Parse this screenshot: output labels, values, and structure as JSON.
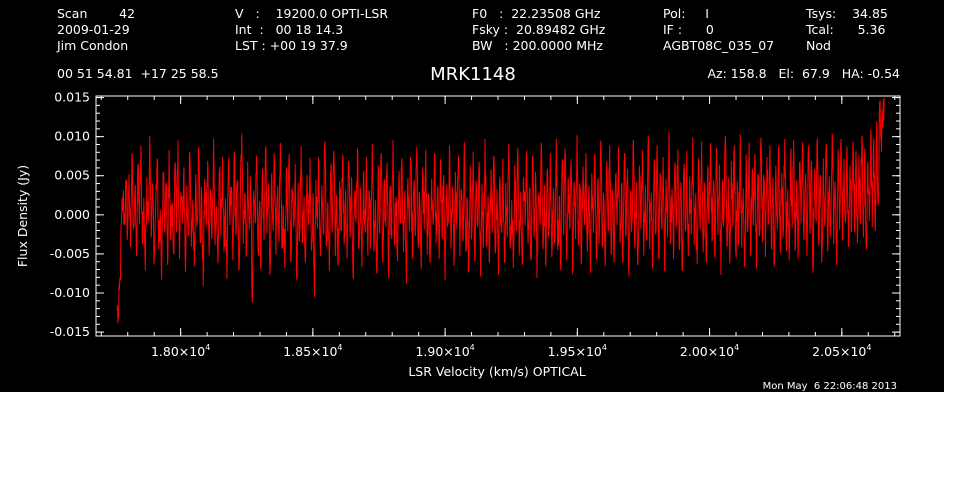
{
  "header": {
    "col1": [
      "Scan        42",
      "2009-01-29",
      "Jim Condon"
    ],
    "col2": [
      "V   :    19200.0 OPTI-LSR",
      "Int  :   00 18 14.3",
      "LST : +00 19 37.9"
    ],
    "col3": [
      "F0   :  22.23508 GHz",
      "Fsky :  20.89482 GHz",
      "BW   : 200.0000 MHz"
    ],
    "col4": [
      "Pol:     I",
      "IF :      0",
      "AGBT08C_035_07"
    ],
    "col5": [
      "Tsys:    34.85",
      "Tcal:      5.36",
      "Nod"
    ],
    "coords": "00 51 54.81  +17 25 58.5",
    "source": "MRK1148",
    "pointing": "Az: 158.8   El:  67.9   HA: -0.54",
    "timestamp": "Mon May  6 22:06:48 2013"
  },
  "colors": {
    "background": "#000000",
    "foreground": "#ffffff",
    "trace": "#ff0000"
  },
  "chart_data": {
    "type": "line",
    "xlabel": "LSR Velocity (km/s) OPTICAL",
    "ylabel": "Flux Density (Jy)",
    "xlim": [
      17680,
      20720
    ],
    "ylim": [
      -0.0155,
      0.0152
    ],
    "xticks": [
      {
        "value": 18000,
        "mantissa": "1.80",
        "exp": "4"
      },
      {
        "value": 18500,
        "mantissa": "1.85",
        "exp": "4"
      },
      {
        "value": 19000,
        "mantissa": "1.90",
        "exp": "4"
      },
      {
        "value": 19500,
        "mantissa": "1.95",
        "exp": "4"
      },
      {
        "value": 20000,
        "mantissa": "2.00",
        "exp": "4"
      },
      {
        "value": 20500,
        "mantissa": "2.05",
        "exp": "4"
      }
    ],
    "yticks": [
      {
        "value": 0.015,
        "label": "0.015"
      },
      {
        "value": 0.01,
        "label": "0.010"
      },
      {
        "value": 0.005,
        "label": "0.005"
      },
      {
        "value": 0.0,
        "label": "0.000"
      },
      {
        "value": -0.005,
        "label": "-0.005"
      },
      {
        "value": -0.01,
        "label": "-0.010"
      },
      {
        "value": -0.015,
        "label": "-0.015"
      }
    ],
    "series": [
      {
        "x_start": 17760,
        "x_end": 20660,
        "values": [
          -0.0122,
          -0.0132,
          -0.0081,
          -0.0006,
          0.0021,
          -0.0009,
          0.0038,
          -0.0024,
          0.0052,
          -0.0041,
          0.0079,
          -0.0017,
          0.0031,
          -0.0053,
          0.0064,
          -0.0012,
          0.0089,
          -0.0038,
          0.0022,
          -0.0071,
          0.0048,
          -0.0006,
          0.0101,
          -0.0029,
          0.0035,
          -0.0058,
          0.0016,
          0.0072,
          -0.0044,
          0.0007,
          -0.0083,
          0.0055,
          -0.0019,
          0.0041,
          -0.0064,
          0.0083,
          -0.0031,
          0.0012,
          -0.0049,
          0.0067,
          -0.0022,
          0.0095,
          -0.0056,
          0.0029,
          -0.0011,
          0.0061,
          -0.0073,
          0.0038,
          -0.0027,
          0.0079,
          -0.0041,
          0.0019,
          -0.0066,
          0.0052,
          -0.0008,
          0.0087,
          -0.0034,
          0.0025,
          -0.0091,
          0.0046,
          -0.0015,
          0.0069,
          -0.0052,
          0.0033,
          -0.0023,
          0.0098,
          -0.0039,
          0.0011,
          -0.0062,
          0.0057,
          -0.0028,
          0.0074,
          -0.0047,
          0.0021,
          -0.0082,
          0.0063,
          -0.0013,
          0.0036,
          -0.0058,
          0.0081,
          -0.0026,
          0.0044,
          -0.0071,
          0.0015,
          0.0104,
          -0.0037,
          0.0027,
          -0.0054,
          0.0068,
          -0.0019,
          0.0049,
          -0.0112,
          0.0031,
          -0.0009,
          0.0076,
          -0.0045,
          0.0018,
          -0.0063,
          0.0059,
          -0.0032,
          0.0086,
          -0.0024,
          0.0039,
          -0.0077,
          0.0047,
          -0.0011,
          0.0071,
          -0.0051,
          0.0022,
          -0.0035,
          0.0092,
          -0.0043,
          0.0013,
          -0.0068,
          0.0054,
          -0.0021,
          0.0078,
          -0.0057,
          0.0034,
          -0.0016,
          0.0065,
          -0.0083,
          0.0041,
          -0.0028,
          0.0088,
          -0.0036,
          0.0024,
          -0.0061,
          0.0051,
          -0.0012,
          0.0073,
          -0.0046,
          0.0028,
          -0.0105,
          0.0045,
          -0.0018,
          0.0067,
          -0.0053,
          0.0037,
          -0.0025,
          0.0094,
          -0.0041,
          0.0016,
          -0.0072,
          0.0058,
          -0.0022,
          0.0082,
          -0.0049,
          0.0026,
          -0.0064,
          0.0043,
          -0.0014,
          0.0077,
          -0.0038,
          0.0032,
          -0.0056,
          0.0069,
          -0.0029,
          0.0048,
          -0.0079,
          0.0021,
          -0.0009,
          0.0085,
          -0.0044,
          0.0035,
          -0.0067,
          0.0053,
          -0.0017,
          0.0074,
          -0.0052,
          0.0029,
          -0.0033,
          0.0091,
          -0.0047,
          0.0019,
          -0.0075,
          0.0062,
          -0.0024,
          0.0079,
          -0.0061,
          0.0042,
          -0.0015,
          0.0066,
          -0.0081,
          0.0037,
          -0.0031,
          0.0096,
          -0.0039,
          0.0023,
          -0.0059,
          0.0056,
          -0.0011,
          0.0072,
          -0.0048,
          0.0031,
          -0.0088,
          0.0047,
          -0.0021,
          0.0069,
          -0.0055,
          0.0038,
          -0.0027,
          0.0087,
          -0.0042,
          0.0017,
          -0.0069,
          0.0061,
          -0.0019,
          0.0083,
          -0.0051,
          0.0027,
          -0.0062,
          0.0046,
          -0.0013,
          0.0079,
          -0.0036,
          0.0033,
          -0.0057,
          0.0071,
          -0.0027,
          0.0051,
          -0.0084,
          0.0024,
          -0.0008,
          0.0089,
          -0.0043,
          0.0036,
          -0.0065,
          0.0055,
          -0.0018,
          0.0076,
          -0.0053,
          0.0031,
          -0.0034,
          0.0093,
          -0.0046,
          0.0021,
          -0.0073,
          0.0063,
          -0.0025,
          0.0081,
          -0.0059,
          0.0044,
          -0.0016,
          0.0068,
          -0.0079,
          0.0039,
          -0.0032,
          0.0097,
          -0.0041,
          0.0025,
          -0.0061,
          0.0058,
          -0.0012,
          0.0075,
          -0.0049,
          0.0033,
          -0.0077,
          0.0049,
          -0.0022,
          0.0072,
          -0.0056,
          0.0041,
          -0.0028,
          0.0091,
          -0.0043,
          0.0019,
          -0.0068,
          0.0064,
          -0.0021,
          0.0085,
          -0.0052,
          0.0029,
          -0.0063,
          0.0048,
          -0.0014,
          0.0082,
          -0.0037,
          0.0035,
          -0.0058,
          0.0075,
          -0.0029,
          0.0055,
          -0.0081,
          0.0027,
          -0.0009,
          0.0092,
          -0.0044,
          0.0038,
          -0.0066,
          0.0059,
          -0.0019,
          0.0079,
          -0.0054,
          0.0034,
          -0.0035,
          0.0097,
          -0.0045,
          0.0024,
          -0.0071,
          0.0066,
          -0.0026,
          0.0085,
          -0.0058,
          0.0047,
          -0.0017,
          0.0071,
          -0.0076,
          0.0042,
          -0.0031,
          0.0102,
          -0.0039,
          0.0028,
          -0.0059,
          0.0062,
          -0.0013,
          0.0079,
          -0.0047,
          0.0037,
          -0.0074,
          0.0053,
          -0.0023,
          0.0077,
          -0.0055,
          0.0045,
          -0.0027,
          0.0095,
          -0.0041,
          0.0023,
          -0.0066,
          0.0068,
          -0.0021,
          0.0089,
          -0.0051,
          0.0033,
          -0.0061,
          0.0052,
          -0.0014,
          0.0087,
          -0.0036,
          0.0039,
          -0.0057,
          0.0079,
          -0.0028,
          0.0059,
          -0.0079,
          0.0031,
          -0.0008,
          0.0096,
          -0.0043,
          0.0042,
          -0.0064,
          0.0063,
          -0.0018,
          0.0083,
          -0.0052,
          0.0038,
          -0.0033,
          0.0101,
          -0.0044,
          0.0028,
          -0.0069,
          0.0071,
          -0.0025,
          0.0089,
          -0.0056,
          0.0051,
          -0.0016,
          0.0074,
          -0.0072,
          0.0046,
          -0.0029,
          0.0106,
          -0.0037,
          0.0033,
          -0.0057,
          0.0067,
          -0.0012,
          0.0084,
          -0.0045,
          0.0042,
          -0.0071,
          0.0058,
          -0.0021,
          0.0082,
          -0.0053,
          0.0049,
          -0.0025,
          0.0099,
          -0.0039,
          0.0028,
          -0.0063,
          0.0073,
          -0.0019,
          0.0094,
          -0.0048,
          0.0038,
          -0.0059,
          0.0057,
          -0.0012,
          0.0092,
          -0.0034,
          0.0044,
          -0.0055,
          0.0086,
          -0.0026,
          0.0064,
          -0.0077,
          0.0036,
          -0.0007,
          0.0101,
          -0.0041,
          0.0047,
          -0.0062,
          0.0069,
          -0.0016,
          0.0089,
          -0.0049,
          0.0043,
          -0.0031,
          0.0103,
          -0.0042,
          0.0034,
          -0.0067,
          0.0077,
          -0.0022,
          0.0092,
          -0.0053,
          0.0056,
          -0.0014,
          0.0078,
          -0.0069,
          0.0051,
          -0.0027,
          0.0099,
          -0.0035,
          0.0041,
          -0.0054,
          0.0074,
          -0.0011,
          0.0089,
          -0.0043,
          0.0048,
          -0.0066,
          0.0063,
          -0.0019,
          0.0086,
          -0.0049,
          0.0054,
          -0.0023,
          0.0097,
          -0.0037,
          0.0032,
          -0.0058,
          0.0079,
          -0.0017,
          0.0096,
          -0.0046,
          0.0044,
          -0.0056,
          0.0067,
          -0.0011,
          0.0093,
          -0.0032,
          0.0052,
          -0.0053,
          0.0088,
          -0.0024,
          0.0069,
          -0.0074,
          0.0041,
          -0.0006,
          0.0098,
          -0.0039,
          0.0051,
          -0.0061,
          0.0072,
          -0.0015,
          0.0091,
          -0.0047,
          0.0049,
          -0.0028,
          0.0104,
          -0.0038,
          0.0043,
          -0.0064,
          0.0084,
          -0.0019,
          0.0097,
          -0.0033,
          0.0072,
          -0.0009,
          0.0087,
          -0.0041,
          0.0063,
          -0.0022,
          0.0094,
          -0.0018,
          0.0082,
          -0.0036,
          0.0076,
          -0.0012,
          0.0101,
          -0.0029,
          0.0085,
          -0.0044,
          0.0068,
          -0.0008,
          0.0109,
          -0.0016,
          0.0098,
          -0.0021,
          0.0119,
          0.0012,
          0.0143,
          0.0095,
          0.0128,
          0.0149
        ]
      }
    ]
  }
}
